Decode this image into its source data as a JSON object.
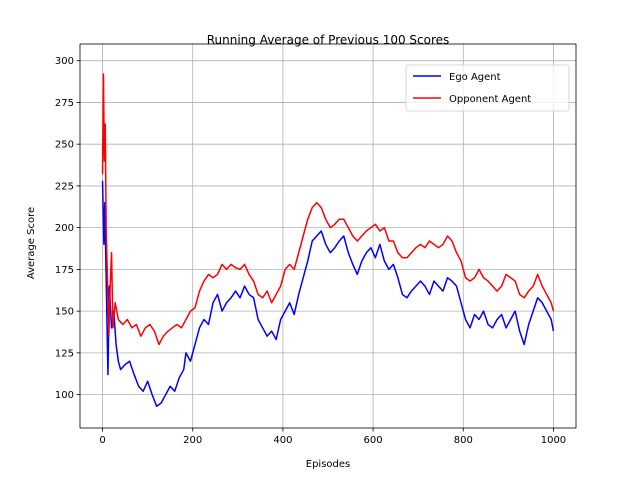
{
  "chart_data": {
    "type": "line",
    "title": "Running Average of Previous 100 Scores",
    "x_label": "Episodes",
    "y_label": "Average Score",
    "xlim": [
      -50,
      1050
    ],
    "ylim": [
      80,
      310
    ],
    "xticks": [
      0,
      200,
      400,
      600,
      800,
      1000
    ],
    "yticks": [
      100,
      125,
      150,
      175,
      200,
      225,
      250,
      275,
      300
    ],
    "grid": true,
    "legend": "upper right",
    "series": [
      {
        "name": "Ego Agent",
        "color": "#0000ff",
        "x": [
          0,
          3,
          5,
          8,
          12,
          15,
          20,
          25,
          30,
          35,
          40,
          50,
          60,
          70,
          80,
          90,
          100,
          110,
          120,
          130,
          140,
          150,
          160,
          170,
          180,
          185,
          195,
          205,
          215,
          225,
          235,
          245,
          255,
          265,
          275,
          285,
          295,
          305,
          315,
          325,
          335,
          345,
          355,
          365,
          375,
          385,
          395,
          405,
          415,
          425,
          435,
          445,
          455,
          465,
          475,
          485,
          495,
          505,
          515,
          525,
          535,
          545,
          555,
          565,
          575,
          585,
          595,
          605,
          615,
          625,
          635,
          645,
          655,
          665,
          675,
          685,
          695,
          705,
          715,
          725,
          735,
          745,
          755,
          765,
          775,
          785,
          795,
          805,
          815,
          825,
          835,
          845,
          855,
          865,
          875,
          885,
          895,
          905,
          915,
          925,
          935,
          945,
          955,
          965,
          975,
          985,
          995,
          1000
        ],
        "values": [
          228,
          190,
          215,
          170,
          112,
          165,
          140,
          150,
          130,
          120,
          115,
          118,
          120,
          112,
          105,
          102,
          108,
          100,
          93,
          95,
          100,
          105,
          102,
          110,
          115,
          125,
          120,
          130,
          140,
          145,
          142,
          155,
          160,
          150,
          155,
          158,
          162,
          158,
          165,
          160,
          158,
          145,
          140,
          135,
          138,
          133,
          145,
          150,
          155,
          148,
          160,
          170,
          180,
          192,
          195,
          198,
          190,
          185,
          188,
          192,
          195,
          185,
          178,
          172,
          180,
          185,
          188,
          182,
          190,
          180,
          175,
          178,
          170,
          160,
          158,
          162,
          165,
          168,
          165,
          160,
          168,
          165,
          162,
          170,
          168,
          165,
          155,
          145,
          140,
          148,
          145,
          150,
          142,
          140,
          145,
          148,
          140,
          145,
          150,
          138,
          130,
          142,
          150,
          158,
          155,
          150,
          145,
          138
        ]
      },
      {
        "name": "Opponent Agent",
        "color": "#ff0000",
        "x": [
          0,
          2,
          4,
          6,
          8,
          11,
          14,
          17,
          20,
          23,
          28,
          35,
          45,
          55,
          65,
          75,
          85,
          95,
          105,
          115,
          125,
          135,
          145,
          155,
          165,
          175,
          185,
          195,
          205,
          215,
          225,
          235,
          245,
          255,
          265,
          275,
          285,
          295,
          305,
          315,
          325,
          335,
          345,
          355,
          365,
          375,
          385,
          395,
          405,
          415,
          425,
          435,
          445,
          455,
          465,
          475,
          485,
          495,
          505,
          515,
          525,
          535,
          545,
          555,
          565,
          575,
          585,
          595,
          605,
          615,
          625,
          635,
          645,
          655,
          665,
          675,
          685,
          695,
          705,
          715,
          725,
          735,
          745,
          755,
          765,
          775,
          785,
          795,
          805,
          815,
          825,
          835,
          845,
          855,
          865,
          875,
          885,
          895,
          905,
          915,
          925,
          935,
          945,
          955,
          965,
          975,
          985,
          995,
          1000
        ],
        "values": [
          232,
          292,
          240,
          262,
          200,
          168,
          135,
          165,
          185,
          140,
          155,
          145,
          142,
          145,
          140,
          142,
          135,
          140,
          142,
          138,
          130,
          135,
          138,
          140,
          142,
          140,
          145,
          150,
          152,
          162,
          168,
          172,
          170,
          172,
          178,
          175,
          178,
          176,
          175,
          178,
          172,
          168,
          160,
          158,
          162,
          155,
          160,
          165,
          175,
          178,
          175,
          185,
          195,
          205,
          212,
          215,
          212,
          205,
          200,
          202,
          205,
          205,
          200,
          195,
          192,
          195,
          198,
          200,
          202,
          198,
          200,
          192,
          192,
          185,
          182,
          182,
          185,
          188,
          190,
          188,
          192,
          190,
          188,
          190,
          195,
          192,
          185,
          180,
          170,
          168,
          170,
          175,
          170,
          168,
          165,
          162,
          165,
          172,
          170,
          168,
          160,
          158,
          162,
          165,
          172,
          165,
          160,
          155,
          150
        ]
      }
    ]
  }
}
